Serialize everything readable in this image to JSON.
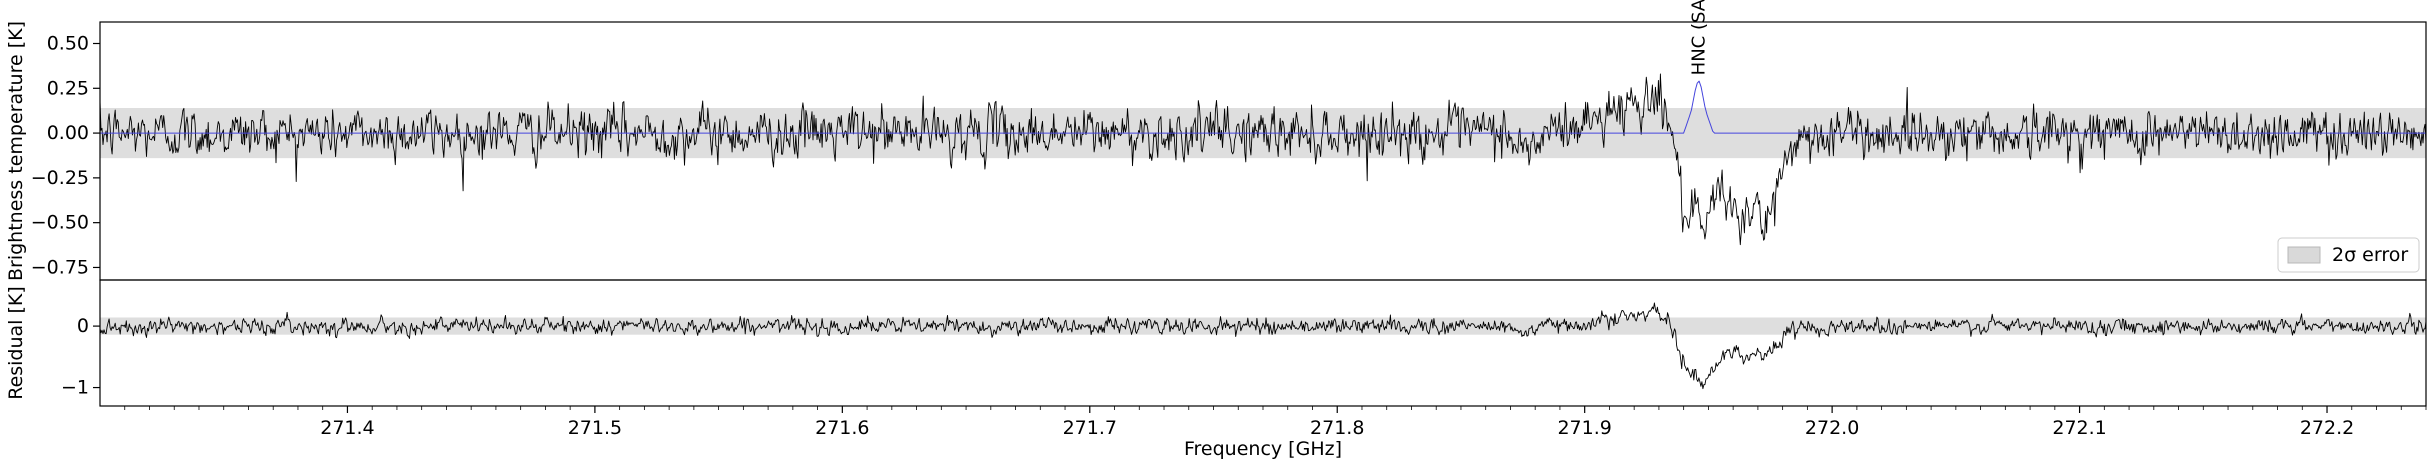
{
  "chart_data": [
    {
      "type": "line",
      "panel": "main",
      "ylabel": "Brightness temperature [K]",
      "xlim": [
        271.3,
        272.24
      ],
      "ylim": [
        -0.82,
        0.62
      ],
      "yticks": [
        0.5,
        0.25,
        0.0,
        -0.25,
        -0.5,
        -0.75
      ],
      "ytick_labels": [
        "0.50",
        "0.25",
        "0.00",
        "−0.25",
        "−0.50",
        "−0.75"
      ],
      "error_band": [
        -0.14,
        0.14
      ],
      "legend": {
        "label": "2σ error",
        "placement": "lower-right"
      },
      "annotations": [
        {
          "text": "HNC (SA)",
          "x": 271.946
        }
      ],
      "series": [
        {
          "role": "observed",
          "color": "#000000",
          "noise_sigma": 0.065,
          "x": [
            271.3,
            271.87,
            271.875,
            271.885,
            271.9,
            271.915,
            271.925,
            271.932,
            271.936,
            271.939,
            271.942,
            271.945,
            271.948,
            271.951,
            271.954,
            271.957,
            271.96,
            271.963,
            271.966,
            271.969,
            271.972,
            271.975,
            271.978,
            271.982,
            271.986,
            271.99,
            272.0,
            272.24
          ],
          "y": [
            0.0,
            0.0,
            -0.12,
            0.0,
            0.05,
            0.15,
            0.2,
            0.18,
            -0.05,
            -0.38,
            -0.45,
            -0.5,
            -0.62,
            -0.42,
            -0.3,
            -0.45,
            -0.35,
            -0.45,
            -0.5,
            -0.4,
            -0.52,
            -0.5,
            -0.3,
            -0.1,
            -0.05,
            -0.02,
            0.0,
            0.0
          ]
        },
        {
          "role": "model",
          "color": "#4444dd",
          "x": [
            271.3,
            271.94,
            271.943,
            271.945,
            271.946,
            271.947,
            271.949,
            271.952,
            272.24
          ],
          "y": [
            0.0,
            0.0,
            0.12,
            0.26,
            0.3,
            0.26,
            0.12,
            0.0,
            0.0
          ]
        }
      ]
    },
    {
      "type": "line",
      "panel": "residual",
      "xlabel": "Frequency [GHz]",
      "ylabel": "Residual [K]",
      "xlim": [
        271.3,
        272.24
      ],
      "ylim": [
        -1.3,
        0.75
      ],
      "yticks": [
        0,
        -1
      ],
      "ytick_labels": [
        "0",
        "−1"
      ],
      "xticks": [
        271.4,
        271.5,
        271.6,
        271.7,
        271.8,
        271.9,
        272.0,
        272.1,
        272.2
      ],
      "xtick_labels": [
        "271.4",
        "271.5",
        "271.6",
        "271.7",
        "271.8",
        "271.9",
        "272.0",
        "272.1",
        "272.2"
      ],
      "error_band": [
        -0.14,
        0.14
      ],
      "series": [
        {
          "role": "residual",
          "color": "#000000",
          "noise_sigma": 0.06,
          "x": [
            271.3,
            271.87,
            271.875,
            271.885,
            271.9,
            271.915,
            271.925,
            271.932,
            271.936,
            271.939,
            271.942,
            271.945,
            271.948,
            271.951,
            271.954,
            271.957,
            271.96,
            271.963,
            271.966,
            271.969,
            271.972,
            271.975,
            271.978,
            271.982,
            271.986,
            271.99,
            272.0,
            272.24
          ],
          "y": [
            0.0,
            0.0,
            -0.12,
            0.0,
            0.05,
            0.15,
            0.2,
            0.18,
            -0.1,
            -0.55,
            -0.75,
            -0.8,
            -0.95,
            -0.72,
            -0.55,
            -0.5,
            -0.38,
            -0.45,
            -0.5,
            -0.4,
            -0.48,
            -0.45,
            -0.3,
            -0.1,
            -0.05,
            -0.02,
            0.0,
            0.0
          ]
        }
      ]
    }
  ]
}
